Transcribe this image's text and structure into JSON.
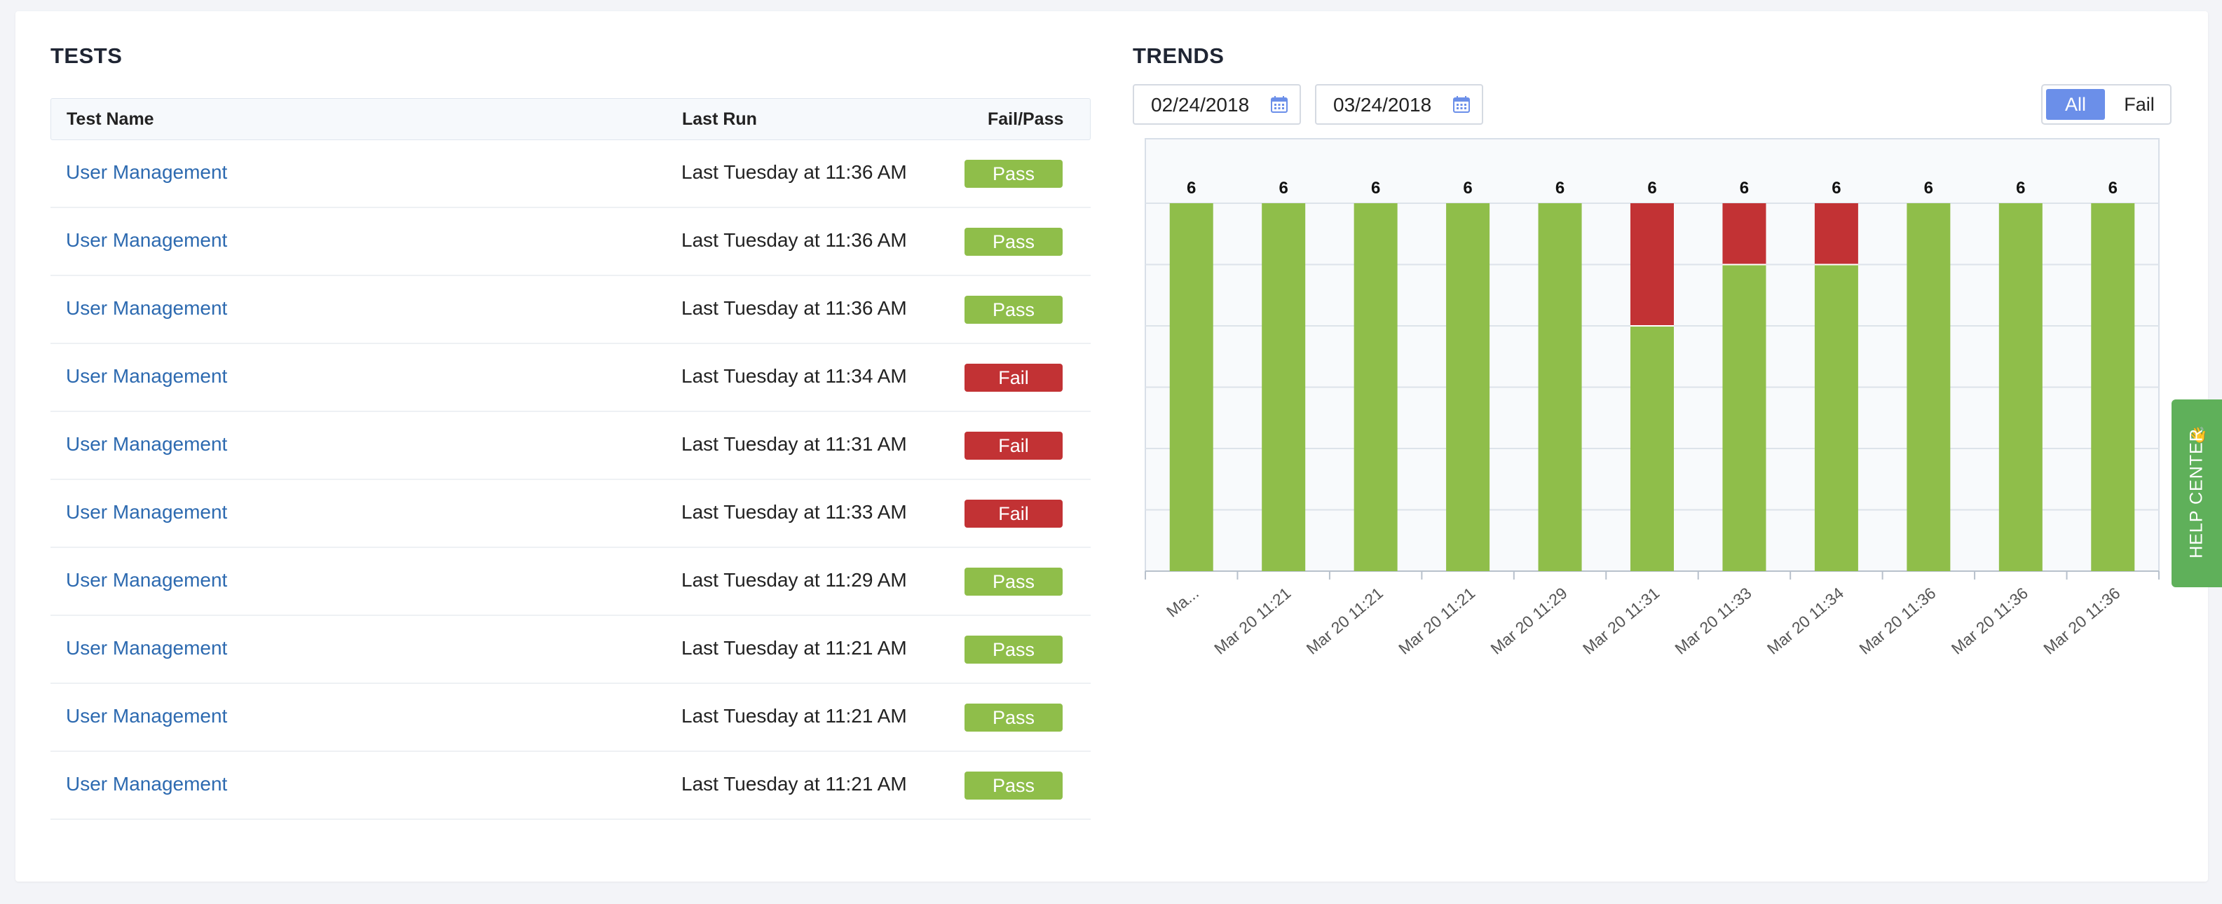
{
  "tests": {
    "title": "TESTS",
    "columns": [
      "Test Name",
      "Last Run",
      "Fail/Pass"
    ],
    "rows": [
      {
        "name": "User Management",
        "last_run": "Last Tuesday at 11:36 AM",
        "status": "Pass"
      },
      {
        "name": "User Management",
        "last_run": "Last Tuesday at 11:36 AM",
        "status": "Pass"
      },
      {
        "name": "User Management",
        "last_run": "Last Tuesday at 11:36 AM",
        "status": "Pass"
      },
      {
        "name": "User Management",
        "last_run": "Last Tuesday at 11:34 AM",
        "status": "Fail"
      },
      {
        "name": "User Management",
        "last_run": "Last Tuesday at 11:31 AM",
        "status": "Fail"
      },
      {
        "name": "User Management",
        "last_run": "Last Tuesday at 11:33 AM",
        "status": "Fail"
      },
      {
        "name": "User Management",
        "last_run": "Last Tuesday at 11:29 AM",
        "status": "Pass"
      },
      {
        "name": "User Management",
        "last_run": "Last Tuesday at 11:21 AM",
        "status": "Pass"
      },
      {
        "name": "User Management",
        "last_run": "Last Tuesday at 11:21 AM",
        "status": "Pass"
      },
      {
        "name": "User Management",
        "last_run": "Last Tuesday at 11:21 AM",
        "status": "Pass"
      }
    ]
  },
  "trends": {
    "title": "TRENDS",
    "date_from": "02/24/2018",
    "date_to": "03/24/2018",
    "filter_options": [
      "All",
      "Fail"
    ],
    "filter_selected": "All"
  },
  "help_center": {
    "label": "HELP CENTER",
    "icon": "waving-hand-icon"
  },
  "colors": {
    "pass": "#8fbe4a",
    "fail": "#c23234",
    "link": "#2d6ab0",
    "accent": "#6b8fe9",
    "help": "#5fb05a"
  },
  "chart_data": {
    "type": "bar",
    "stacked": true,
    "categories": [
      "Ma...",
      "Mar 20 11:21",
      "Mar 20 11:21",
      "Mar 20 11:21",
      "Mar 20 11:29",
      "Mar 20 11:31",
      "Mar 20 11:33",
      "Mar 20 11:34",
      "Mar 20 11:36",
      "Mar 20 11:36",
      "Mar 20 11:36"
    ],
    "series": [
      {
        "key": "pass",
        "values": [
          6,
          6,
          6,
          6,
          6,
          4,
          5,
          5,
          6,
          6,
          6
        ]
      },
      {
        "key": "fail",
        "values": [
          0,
          0,
          0,
          0,
          0,
          2,
          1,
          1,
          0,
          0,
          0
        ]
      }
    ],
    "totals": [
      6,
      6,
      6,
      6,
      6,
      6,
      6,
      6,
      6,
      6,
      6
    ],
    "ylim": [
      0,
      6
    ],
    "grid": true
  }
}
